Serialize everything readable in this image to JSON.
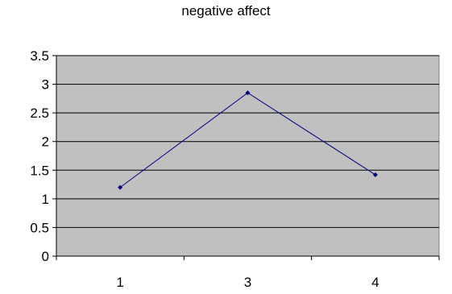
{
  "chart_data": {
    "type": "line",
    "title": "negative affect",
    "xlabel": "",
    "ylabel": "",
    "categories": [
      "1",
      "3",
      "4"
    ],
    "series": [
      {
        "values": [
          1.2,
          2.85,
          1.42
        ]
      }
    ],
    "ylim": [
      0,
      3.5
    ],
    "yticks": [
      "0",
      "0.5",
      "1",
      "1.5",
      "2",
      "2.5",
      "3",
      "3.5"
    ],
    "grid": true,
    "legend": "none",
    "colors": {
      "plot_background": "#c0c0c0",
      "gridline": "#000000",
      "series_line": "#000080"
    }
  }
}
